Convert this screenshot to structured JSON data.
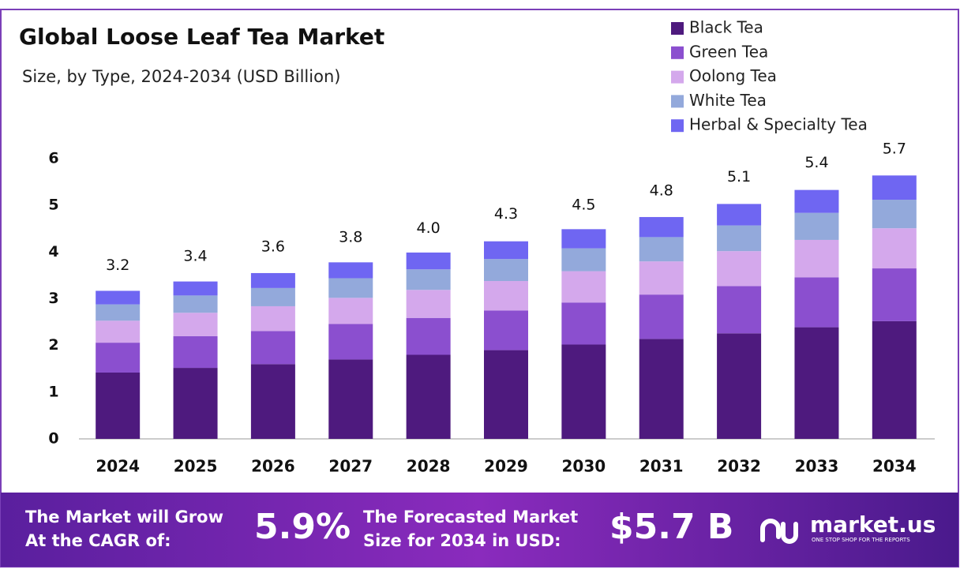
{
  "chart_data": {
    "type": "stacked-bar",
    "title": "Global Loose Leaf Tea Market",
    "subtitle": "Size, by Type, 2024-2034 (USD Billion)",
    "categories": [
      "2024",
      "2025",
      "2026",
      "2027",
      "2028",
      "2029",
      "2030",
      "2031",
      "2032",
      "2033",
      "2034"
    ],
    "series": [
      {
        "name": "Black Tea",
        "color": "#4e1a7e",
        "values": [
          1.42,
          1.52,
          1.6,
          1.7,
          1.8,
          1.9,
          2.02,
          2.14,
          2.26,
          2.39,
          2.52
        ]
      },
      {
        "name": "Green Tea",
        "color": "#8b4fcf",
        "values": [
          0.64,
          0.68,
          0.71,
          0.76,
          0.79,
          0.85,
          0.9,
          0.95,
          1.01,
          1.07,
          1.13
        ]
      },
      {
        "name": "Oolong Tea",
        "color": "#d4a8ec",
        "values": [
          0.47,
          0.5,
          0.53,
          0.56,
          0.6,
          0.63,
          0.67,
          0.71,
          0.75,
          0.8,
          0.86
        ]
      },
      {
        "name": "White Tea",
        "color": "#93a9db",
        "values": [
          0.35,
          0.37,
          0.39,
          0.42,
          0.44,
          0.47,
          0.49,
          0.52,
          0.55,
          0.58,
          0.61
        ]
      },
      {
        "name": "Herbal & Specialty Tea",
        "color": "#6f66f2",
        "values": [
          0.29,
          0.3,
          0.32,
          0.34,
          0.36,
          0.38,
          0.41,
          0.43,
          0.46,
          0.49,
          0.52
        ]
      }
    ],
    "totals": [
      3.2,
      3.4,
      3.6,
      3.8,
      4.0,
      4.3,
      4.5,
      4.8,
      5.1,
      5.4,
      5.7
    ],
    "total_labels": [
      "3.2",
      "3.4",
      "3.6",
      "3.8",
      "4.0",
      "4.3",
      "4.5",
      "4.8",
      "5.1",
      "5.4",
      "5.7"
    ],
    "ylim": [
      0,
      6
    ],
    "yticks": [
      0,
      1,
      2,
      3,
      4,
      5,
      6
    ],
    "grid": false,
    "legend": "top-right"
  },
  "footer": {
    "cagr_text": [
      "The Market will Grow",
      "At the CAGR of:"
    ],
    "cagr_value": "5.9%",
    "forecast_text": [
      "The Forecasted Market",
      "Size for 2034 in USD:"
    ],
    "forecast_value": "$5.7 B",
    "brand": "market.us",
    "tagline": "ONE STOP SHOP FOR THE REPORTS"
  }
}
